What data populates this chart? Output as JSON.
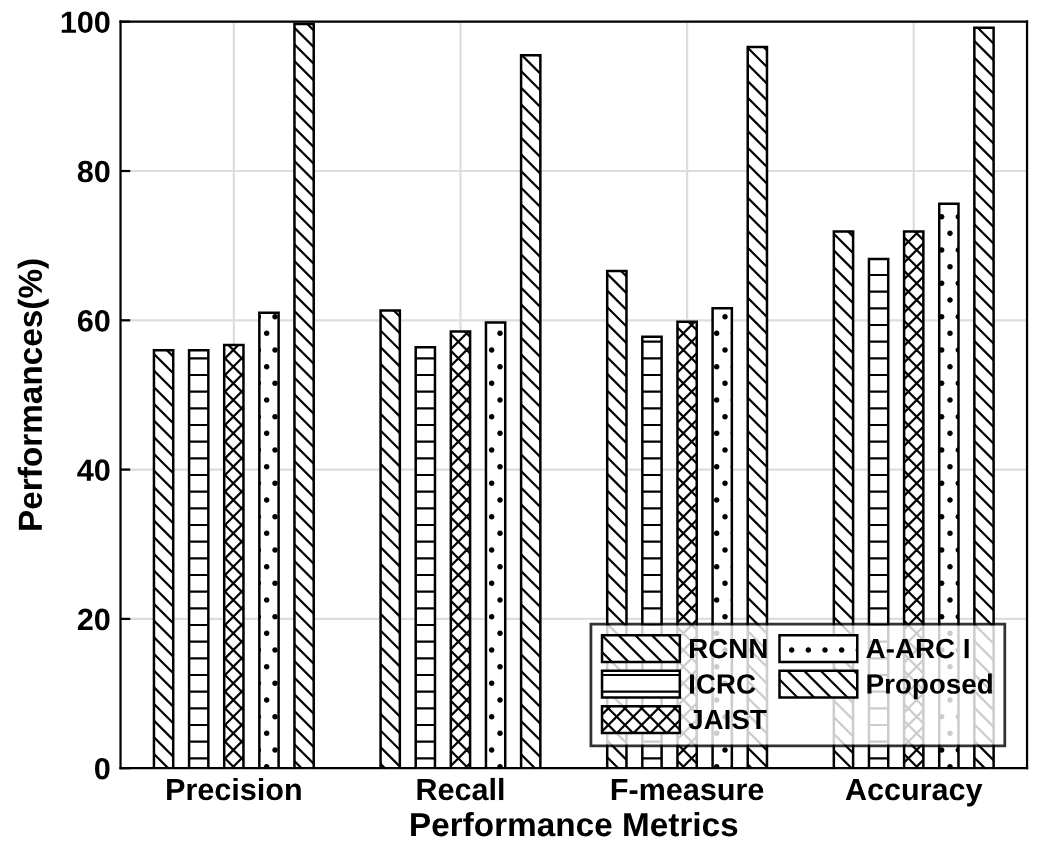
{
  "chart_data": {
    "type": "bar",
    "xlabel": "Performance Metrics",
    "ylabel": "Performances(%)",
    "categories": [
      "Precision",
      "Recall",
      "F-measure",
      "Accuracy"
    ],
    "series": [
      {
        "name": "RCNN",
        "color": "#000000",
        "values": [
          56,
          61.3,
          66.6,
          71.9
        ]
      },
      {
        "name": "ICRC",
        "color": "#000000",
        "values": [
          56,
          56.4,
          57.8,
          68.2
        ]
      },
      {
        "name": "JAIST",
        "color": "#000000",
        "values": [
          56.7,
          58.5,
          59.8,
          71.9
        ]
      },
      {
        "name": "A-ARC I",
        "color": "#000000",
        "values": [
          61,
          59.7,
          61.6,
          75.6
        ]
      },
      {
        "name": "Proposed",
        "color": "#000000",
        "values": [
          99.7,
          95.5,
          96.6,
          99.2
        ]
      }
    ],
    "ylim": [
      0,
      100
    ],
    "yticks": [
      0,
      20,
      40,
      60,
      80,
      100
    ],
    "grid": true,
    "legend": "bottom right"
  }
}
